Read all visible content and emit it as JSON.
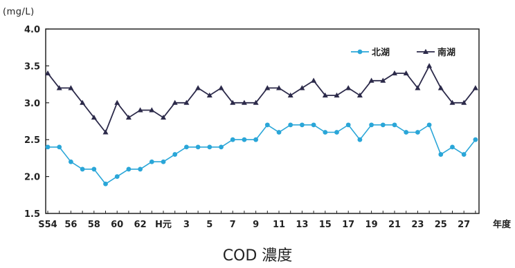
{
  "unit_label": "(mg/L)",
  "caption": "COD 濃度",
  "x_axis_unit": "年度",
  "colors": {
    "north": "#2aa6d8",
    "south": "#2c2a4a",
    "axis": "#222222"
  },
  "chart_data": {
    "type": "line",
    "title": "COD 濃度",
    "ylabel": "(mg/L)",
    "xlabel": "年度",
    "ylim": [
      1.5,
      4.0
    ],
    "yticks": [
      "4.0",
      "3.5",
      "3.0",
      "2.5",
      "2.0",
      "1.5"
    ],
    "ytick_values": [
      4.0,
      3.5,
      3.0,
      2.5,
      2.0,
      1.5
    ],
    "x": [
      "S54",
      "S55",
      "S56",
      "S57",
      "S58",
      "S59",
      "S60",
      "S61",
      "S62",
      "S63",
      "H元",
      "H2",
      "H3",
      "H4",
      "H5",
      "H6",
      "H7",
      "H8",
      "H9",
      "H10",
      "H11",
      "H12",
      "H13",
      "H14",
      "H15",
      "H16",
      "H17",
      "H18",
      "H19",
      "H20",
      "H21",
      "H22",
      "H23",
      "H24",
      "H25",
      "H26",
      "H27",
      "H28"
    ],
    "xtick_labels": [
      "S54",
      "56",
      "58",
      "60",
      "62",
      "H元",
      "3",
      "5",
      "7",
      "9",
      "11",
      "13",
      "15",
      "17",
      "19",
      "21",
      "23",
      "25",
      "27"
    ],
    "legend": "top-right",
    "grid": false,
    "series": [
      {
        "name": "北湖",
        "marker": "circle",
        "values": [
          2.4,
          2.4,
          2.2,
          2.1,
          2.1,
          1.9,
          2.0,
          2.1,
          2.1,
          2.2,
          2.2,
          2.3,
          2.4,
          2.4,
          2.4,
          2.4,
          2.5,
          2.5,
          2.5,
          2.7,
          2.6,
          2.7,
          2.7,
          2.7,
          2.6,
          2.6,
          2.7,
          2.5,
          2.7,
          2.7,
          2.7,
          2.6,
          2.6,
          2.7,
          2.3,
          2.4,
          2.3,
          2.5
        ]
      },
      {
        "name": "南湖",
        "marker": "triangle",
        "values": [
          3.4,
          3.2,
          3.2,
          3.0,
          2.8,
          2.6,
          3.0,
          2.8,
          2.9,
          2.9,
          2.8,
          3.0,
          3.0,
          3.2,
          3.1,
          3.2,
          3.0,
          3.0,
          3.0,
          3.2,
          3.2,
          3.1,
          3.2,
          3.3,
          3.1,
          3.1,
          3.2,
          3.1,
          3.3,
          3.3,
          3.4,
          3.4,
          3.2,
          3.5,
          3.2,
          3.0,
          3.0,
          3.2
        ]
      }
    ]
  }
}
